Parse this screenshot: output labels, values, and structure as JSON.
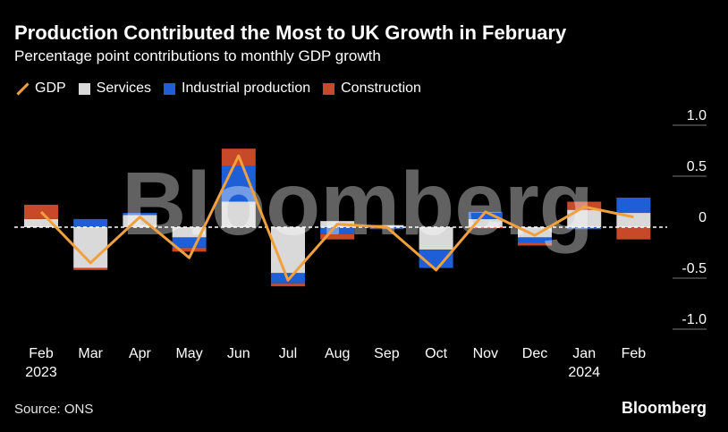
{
  "title": "Production Contributed the Most to UK Growth in February",
  "subtitle": "Percentage point contributions to monthly GDP growth",
  "source": "Source: ONS",
  "brand": "Bloomberg",
  "watermark": "Bloomberg",
  "legend": [
    {
      "label": "GDP",
      "color": "#f0a03c",
      "kind": "line"
    },
    {
      "label": "Services",
      "color": "#d9d9d9",
      "kind": "box"
    },
    {
      "label": "Industrial production",
      "color": "#1e5fd8",
      "kind": "box"
    },
    {
      "label": "Construction",
      "color": "#c8482a",
      "kind": "box"
    }
  ],
  "chart_data": {
    "type": "bar",
    "stacked": true,
    "categories": [
      "Feb",
      "Mar",
      "Apr",
      "May",
      "Jun",
      "Jul",
      "Aug",
      "Sep",
      "Oct",
      "Nov",
      "Dec",
      "Jan",
      "Feb"
    ],
    "year_labels": [
      "2023",
      "",
      "",
      "",
      "",
      "",
      "",
      "",
      "",
      "",
      "",
      "2024",
      ""
    ],
    "ylim": [
      -1.0,
      1.0
    ],
    "yticks": [
      1.0,
      0.5,
      0,
      -0.5,
      -1.0
    ],
    "ytick_labels": [
      "1.0",
      "0.5",
      "0",
      "-0.5",
      "-1.0"
    ],
    "series": [
      {
        "name": "Services",
        "type": "bar",
        "color": "#d9d9d9",
        "values": [
          0.08,
          -0.4,
          0.12,
          -0.1,
          0.25,
          -0.45,
          0.06,
          0.02,
          -0.22,
          0.08,
          -0.1,
          0.17,
          0.14
        ]
      },
      {
        "name": "Industrial production",
        "type": "bar",
        "color": "#1e5fd8",
        "values": [
          0.0,
          0.08,
          0.02,
          -0.1,
          0.35,
          -0.1,
          -0.07,
          -0.02,
          -0.18,
          0.07,
          -0.05,
          -0.02,
          0.15
        ]
      },
      {
        "name": "Construction",
        "type": "bar",
        "color": "#c8482a",
        "values": [
          0.14,
          -0.02,
          0.0,
          -0.04,
          0.17,
          -0.03,
          -0.05,
          0.0,
          0.0,
          -0.01,
          -0.03,
          0.08,
          -0.12
        ]
      },
      {
        "name": "GDP",
        "type": "line",
        "color": "#f0a03c",
        "values": [
          0.15,
          -0.35,
          0.1,
          -0.3,
          0.7,
          -0.52,
          0.03,
          0.0,
          -0.42,
          0.15,
          -0.08,
          0.2,
          0.1
        ]
      }
    ]
  }
}
